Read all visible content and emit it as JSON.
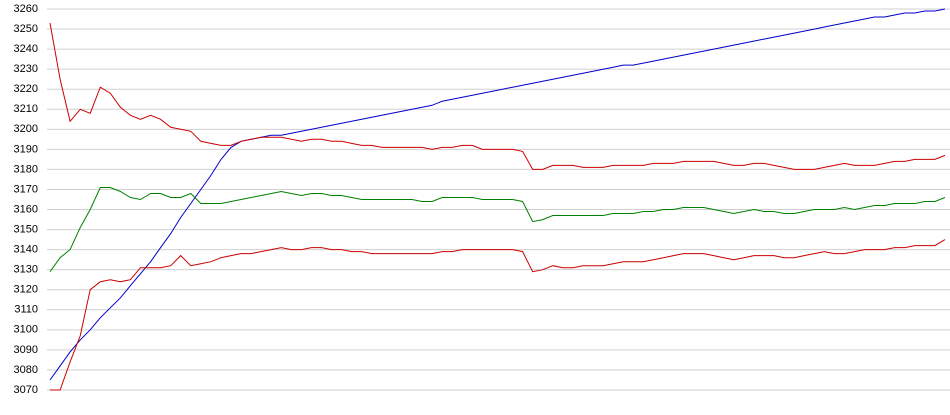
{
  "chart_data": {
    "type": "line",
    "categories": [
      null,
      null,
      null,
      null,
      null,
      null,
      null,
      null,
      null,
      null,
      null,
      null,
      null,
      null,
      null,
      null,
      null,
      null,
      null,
      null,
      null,
      null,
      null,
      null,
      null,
      null,
      null,
      null,
      null,
      null,
      null,
      null,
      null,
      null,
      null,
      null,
      null,
      null,
      null,
      null,
      null,
      null,
      null,
      null,
      null,
      null,
      null,
      null,
      null,
      null,
      null,
      null,
      null,
      null,
      null,
      null,
      null,
      null,
      null,
      null,
      null,
      null,
      null,
      null,
      null,
      null,
      null,
      null,
      null,
      null,
      null,
      null,
      null,
      null,
      null,
      null,
      null,
      null,
      null,
      null,
      null,
      null,
      null,
      null,
      null,
      null,
      null,
      null,
      null,
      null
    ],
    "series": [
      {
        "color": "#0000cc",
        "values": [
          3075,
          3082,
          3089,
          3095,
          3100,
          3106,
          3111,
          3116,
          3122,
          3128,
          3134,
          3141,
          3148,
          3156,
          3163,
          3170,
          3177,
          3185,
          3191,
          3194,
          3195,
          3196,
          3197,
          3197,
          3198,
          3199,
          3200,
          3201,
          3202,
          3203,
          3204,
          3205,
          3206,
          3207,
          3208,
          3209,
          3210,
          3211,
          3212,
          3214,
          3215,
          3216,
          3217,
          3218,
          3219,
          3220,
          3221,
          3222,
          3223,
          3224,
          3225,
          3226,
          3227,
          3228,
          3229,
          3230,
          3231,
          3232,
          3232,
          3233,
          3234,
          3235,
          3236,
          3237,
          3238,
          3239,
          3240,
          3241,
          3242,
          3243,
          3244,
          3245,
          3246,
          3247,
          3248,
          3249,
          3250,
          3251,
          3252,
          3253,
          3254,
          3255,
          3256,
          3256,
          3257,
          3258,
          3258,
          3259,
          3259,
          3260
        ]
      },
      {
        "color": "#cc0000",
        "values": [
          3253,
          3225,
          3204,
          3210,
          3208,
          3221,
          3218,
          3211,
          3207,
          3205,
          3207,
          3205,
          3201,
          3200,
          3199,
          3194,
          3193,
          3192,
          3192,
          3194,
          3195,
          3196,
          3196,
          3196,
          3195,
          3194,
          3195,
          3195,
          3194,
          3194,
          3193,
          3192,
          3192,
          3191,
          3191,
          3191,
          3191,
          3191,
          3190,
          3191,
          3191,
          3192,
          3192,
          3190,
          3190,
          3190,
          3190,
          3189,
          3180,
          3180,
          3182,
          3182,
          3182,
          3181,
          3181,
          3181,
          3182,
          3182,
          3182,
          3182,
          3183,
          3183,
          3183,
          3184,
          3184,
          3184,
          3184,
          3183,
          3182,
          3182,
          3183,
          3183,
          3182,
          3181,
          3180,
          3180,
          3180,
          3181,
          3182,
          3183,
          3182,
          3182,
          3182,
          3183,
          3184,
          3184,
          3185,
          3185,
          3185,
          3187
        ]
      },
      {
        "color": "#008000",
        "values": [
          3129,
          3136,
          3140,
          3151,
          3160,
          3171,
          3171,
          3169,
          3166,
          3165,
          3168,
          3168,
          3166,
          3166,
          3168,
          3163,
          3163,
          3163,
          3164,
          3165,
          3166,
          3167,
          3168,
          3169,
          3168,
          3167,
          3168,
          3168,
          3167,
          3167,
          3166,
          3165,
          3165,
          3165,
          3165,
          3165,
          3165,
          3164,
          3164,
          3166,
          3166,
          3166,
          3166,
          3165,
          3165,
          3165,
          3165,
          3164,
          3154,
          3155,
          3157,
          3157,
          3157,
          3157,
          3157,
          3157,
          3158,
          3158,
          3158,
          3159,
          3159,
          3160,
          3160,
          3161,
          3161,
          3161,
          3160,
          3159,
          3158,
          3159,
          3160,
          3159,
          3159,
          3158,
          3158,
          3159,
          3160,
          3160,
          3160,
          3161,
          3160,
          3161,
          3162,
          3162,
          3163,
          3163,
          3163,
          3164,
          3164,
          3166
        ]
      },
      {
        "color": "#cc0000",
        "values": [
          3070,
          3070,
          3084,
          3097,
          3120,
          3124,
          3125,
          3124,
          3125,
          3131,
          3131,
          3131,
          3132,
          3137,
          3132,
          3133,
          3134,
          3136,
          3137,
          3138,
          3138,
          3139,
          3140,
          3141,
          3140,
          3140,
          3141,
          3141,
          3140,
          3140,
          3139,
          3139,
          3138,
          3138,
          3138,
          3138,
          3138,
          3138,
          3138,
          3139,
          3139,
          3140,
          3140,
          3140,
          3140,
          3140,
          3140,
          3139,
          3129,
          3130,
          3132,
          3131,
          3131,
          3132,
          3132,
          3132,
          3133,
          3134,
          3134,
          3134,
          3135,
          3136,
          3137,
          3138,
          3138,
          3138,
          3137,
          3136,
          3135,
          3136,
          3137,
          3137,
          3137,
          3136,
          3136,
          3137,
          3138,
          3139,
          3138,
          3138,
          3139,
          3140,
          3140,
          3140,
          3141,
          3141,
          3142,
          3142,
          3142,
          3145
        ]
      }
    ],
    "ylim": [
      3070,
      3260
    ],
    "yticks": [
      3070,
      3080,
      3090,
      3100,
      3110,
      3120,
      3130,
      3140,
      3150,
      3160,
      3170,
      3180,
      3190,
      3200,
      3210,
      3220,
      3230,
      3240,
      3250,
      3260
    ],
    "grid": true
  }
}
